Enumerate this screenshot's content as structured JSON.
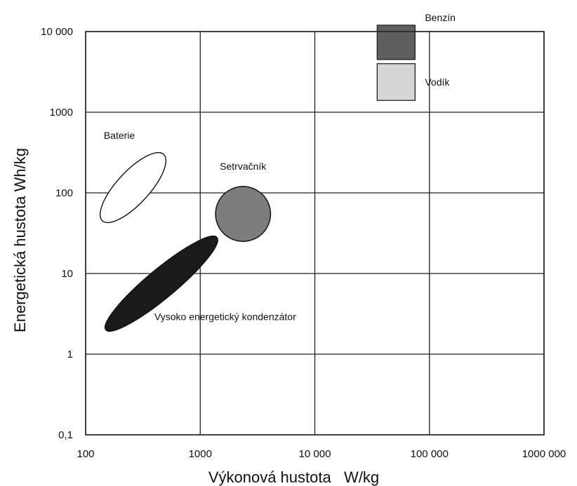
{
  "chart_data": {
    "type": "scatter",
    "title": "",
    "xlabel": "Výkonová hustota   W/kg",
    "ylabel": "Energetická hustota Wh/kg",
    "x_scale": "log",
    "y_scale": "log",
    "xlim": [
      100,
      1000000
    ],
    "ylim": [
      0.1,
      10000
    ],
    "grid": true,
    "x_ticks": [
      {
        "value": 100,
        "label": "100"
      },
      {
        "value": 1000,
        "label": "1000"
      },
      {
        "value": 10000,
        "label": "10 000"
      },
      {
        "value": 100000,
        "label": "100 000"
      },
      {
        "value": 1000000,
        "label": "1000 000"
      }
    ],
    "y_ticks": [
      {
        "value": 0.1,
        "label": "0,1"
      },
      {
        "value": 1,
        "label": "1"
      },
      {
        "value": 10,
        "label": "10"
      },
      {
        "value": 100,
        "label": "100"
      },
      {
        "value": 1000,
        "label": "1000"
      },
      {
        "value": 10000,
        "label": "10 000"
      }
    ],
    "regions": [
      {
        "name": "Baterie",
        "shape": "ellipse",
        "x_range": [
          140,
          480
        ],
        "y_range": [
          45,
          300
        ],
        "fill": "#ffffff",
        "label_anchor": "above-left"
      },
      {
        "name": "Setrvačník",
        "shape": "circle",
        "x_range": [
          1300,
          4300
        ],
        "y_range": [
          25,
          120
        ],
        "fill": "#7d7d7d",
        "label_anchor": "above"
      },
      {
        "name": "Vysoko energetický kondenzátor",
        "shape": "ellipse",
        "x_range": [
          150,
          1400
        ],
        "y_range": [
          2,
          28
        ],
        "fill": "#1a1a1a",
        "label_anchor": "right"
      },
      {
        "name": "Benzín",
        "shape": "rect",
        "x_range": [
          35000,
          75000
        ],
        "y_range": [
          4500,
          12000
        ],
        "fill": "#5f5f5f",
        "label_anchor": "above-right"
      },
      {
        "name": "Vodík",
        "shape": "rect",
        "x_range": [
          35000,
          75000
        ],
        "y_range": [
          1400,
          4000
        ],
        "fill": "#d6d6d6",
        "label_anchor": "right"
      }
    ]
  }
}
